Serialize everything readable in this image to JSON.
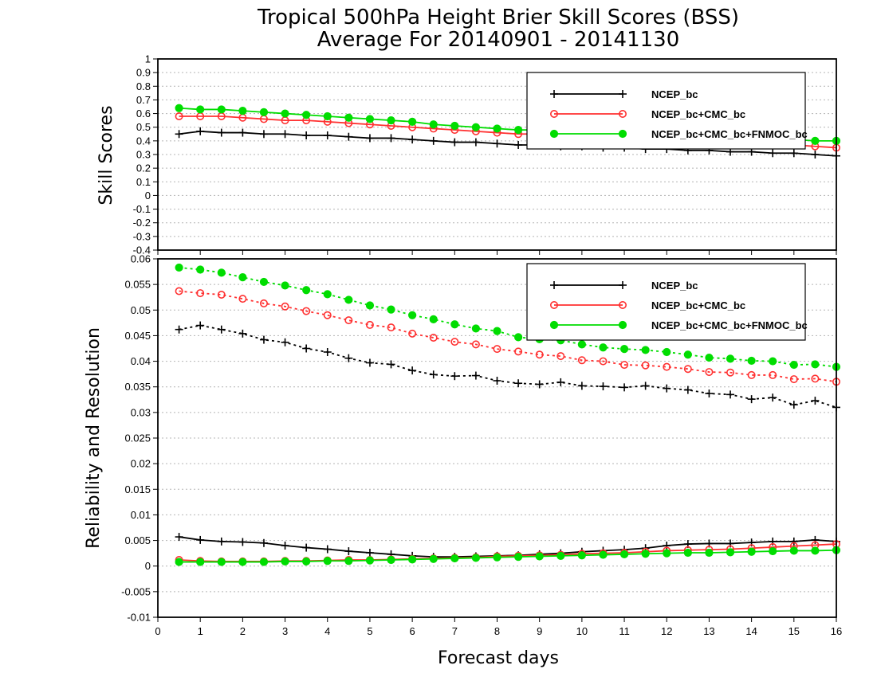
{
  "title_line1": "Tropical 500hPa Height Brier Skill Scores (BSS)",
  "title_line2": "Average For 20140901 - 20141130",
  "xlabel": "Forecast days",
  "chart_data": [
    {
      "type": "line",
      "panel": "top",
      "ylabel": "Skill Scores",
      "xlabel": "Forecast days",
      "xlim": [
        0,
        16
      ],
      "ylim": [
        -0.4,
        1
      ],
      "xticks": [
        "0",
        "1",
        "2",
        "3",
        "4",
        "5",
        "6",
        "7",
        "8",
        "9",
        "10",
        "11",
        "12",
        "13",
        "14",
        "15",
        "16"
      ],
      "yticks": [
        "-0.4",
        "-0.3",
        "-0.2",
        "-0.1",
        "0",
        "0.1",
        "0.2",
        "0.3",
        "0.4",
        "0.5",
        "0.6",
        "0.7",
        "0.8",
        "0.9",
        "1"
      ],
      "grid": true,
      "legend_position": "top-right",
      "x": [
        0.5,
        1,
        1.5,
        2,
        2.5,
        3,
        3.5,
        4,
        4.5,
        5,
        5.5,
        6,
        6.5,
        7,
        7.5,
        8,
        8.5,
        9,
        9.5,
        10,
        10.5,
        11,
        11.5,
        12,
        12.5,
        13,
        13.5,
        14,
        14.5,
        15,
        15.5,
        16
      ],
      "series": [
        {
          "name": "NCEP_bc",
          "color": "#000000",
          "marker": "plus",
          "values": [
            0.45,
            0.47,
            0.46,
            0.46,
            0.45,
            0.45,
            0.44,
            0.44,
            0.43,
            0.42,
            0.42,
            0.41,
            0.4,
            0.39,
            0.39,
            0.38,
            0.37,
            0.37,
            0.36,
            0.36,
            0.35,
            0.35,
            0.34,
            0.34,
            0.33,
            0.33,
            0.32,
            0.32,
            0.31,
            0.31,
            0.3,
            0.29
          ]
        },
        {
          "name": "NCEP_bc+CMC_bc",
          "color": "#ff3030",
          "marker": "open-circle",
          "values": [
            0.58,
            0.58,
            0.58,
            0.57,
            0.56,
            0.55,
            0.55,
            0.54,
            0.53,
            0.52,
            0.51,
            0.5,
            0.49,
            0.48,
            0.47,
            0.46,
            0.45,
            0.45,
            0.44,
            0.43,
            0.42,
            0.42,
            0.41,
            0.4,
            0.4,
            0.39,
            0.38,
            0.38,
            0.37,
            0.37,
            0.36,
            0.35
          ]
        },
        {
          "name": "NCEP_bc+CMC_bc+FNMOC_bc",
          "color": "#00dd00",
          "marker": "filled-circle",
          "values": [
            0.64,
            0.63,
            0.63,
            0.62,
            0.61,
            0.6,
            0.59,
            0.58,
            0.57,
            0.56,
            0.55,
            0.54,
            0.52,
            0.51,
            0.5,
            0.49,
            0.48,
            0.48,
            0.47,
            0.46,
            0.45,
            0.45,
            0.44,
            0.44,
            0.43,
            0.42,
            0.42,
            0.41,
            0.41,
            0.41,
            0.4,
            0.4
          ]
        }
      ]
    },
    {
      "type": "line",
      "panel": "bottom",
      "ylabel": "Reliability and Resolution",
      "xlabel": "Forecast days",
      "xlim": [
        0,
        16
      ],
      "ylim": [
        -0.01,
        0.06
      ],
      "xticks": [
        "0",
        "1",
        "2",
        "3",
        "4",
        "5",
        "6",
        "7",
        "8",
        "9",
        "10",
        "11",
        "12",
        "13",
        "14",
        "15",
        "16"
      ],
      "yticks": [
        "-0.01",
        "-0.005",
        "0",
        "0.005",
        "0.01",
        "0.015",
        "0.02",
        "0.025",
        "0.03",
        "0.035",
        "0.04",
        "0.045",
        "0.05",
        "0.055",
        "0.06"
      ],
      "grid": true,
      "legend_position": "top-right",
      "x": [
        0.5,
        1,
        1.5,
        2,
        2.5,
        3,
        3.5,
        4,
        4.5,
        5,
        5.5,
        6,
        6.5,
        7,
        7.5,
        8,
        8.5,
        9,
        9.5,
        10,
        10.5,
        11,
        11.5,
        12,
        12.5,
        13,
        13.5,
        14,
        14.5,
        15,
        15.5,
        16
      ],
      "series": [
        {
          "name": "NCEP_bc",
          "color": "#000000",
          "marker": "plus",
          "resolution": [
            0.0462,
            0.047,
            0.0462,
            0.0454,
            0.0442,
            0.0437,
            0.0425,
            0.0418,
            0.0406,
            0.0397,
            0.0394,
            0.0382,
            0.0374,
            0.0371,
            0.0372,
            0.0362,
            0.0357,
            0.0355,
            0.0359,
            0.0352,
            0.0351,
            0.0349,
            0.0352,
            0.0347,
            0.0344,
            0.0337,
            0.0335,
            0.0326,
            0.0329,
            0.0315,
            0.0323,
            0.031
          ],
          "reliability": [
            0.0057,
            0.0051,
            0.0048,
            0.0047,
            0.0045,
            0.004,
            0.0036,
            0.0033,
            0.0029,
            0.0026,
            0.0023,
            0.002,
            0.0018,
            0.0018,
            0.0019,
            0.002,
            0.0021,
            0.0023,
            0.0025,
            0.0028,
            0.003,
            0.0032,
            0.0035,
            0.004,
            0.0043,
            0.0044,
            0.0044,
            0.0046,
            0.0048,
            0.0048,
            0.0051,
            0.0048
          ]
        },
        {
          "name": "NCEP_bc+CMC_bc",
          "color": "#ff3030",
          "marker": "open-circle",
          "resolution": [
            0.0537,
            0.0533,
            0.053,
            0.0522,
            0.0513,
            0.0507,
            0.0498,
            0.049,
            0.048,
            0.0471,
            0.0466,
            0.0454,
            0.0446,
            0.0438,
            0.0433,
            0.0424,
            0.0419,
            0.0413,
            0.041,
            0.0402,
            0.04,
            0.0393,
            0.0392,
            0.0389,
            0.0385,
            0.0379,
            0.0378,
            0.0373,
            0.0373,
            0.0365,
            0.0366,
            0.036
          ],
          "reliability": [
            0.0012,
            0.001,
            0.0009,
            0.0009,
            0.0009,
            0.001,
            0.001,
            0.0011,
            0.0012,
            0.0012,
            0.0013,
            0.0014,
            0.0015,
            0.0016,
            0.0017,
            0.0019,
            0.002,
            0.0021,
            0.0022,
            0.0024,
            0.0025,
            0.0026,
            0.0028,
            0.003,
            0.0031,
            0.0032,
            0.0033,
            0.0035,
            0.0037,
            0.0039,
            0.0041,
            0.0043
          ]
        },
        {
          "name": "NCEP_bc+CMC_bc+FNMOC_bc",
          "color": "#00dd00",
          "marker": "filled-circle",
          "resolution": [
            0.0583,
            0.0579,
            0.0573,
            0.0564,
            0.0555,
            0.0548,
            0.0539,
            0.0531,
            0.052,
            0.0509,
            0.0501,
            0.049,
            0.0482,
            0.0472,
            0.0464,
            0.0459,
            0.0447,
            0.0443,
            0.0441,
            0.0433,
            0.0427,
            0.0424,
            0.0422,
            0.0418,
            0.0413,
            0.0407,
            0.0405,
            0.0401,
            0.04,
            0.0393,
            0.0394,
            0.0389
          ],
          "reliability": [
            0.0008,
            0.0008,
            0.0008,
            0.0008,
            0.0008,
            0.0009,
            0.0009,
            0.001,
            0.001,
            0.0011,
            0.0012,
            0.0013,
            0.0014,
            0.0015,
            0.0016,
            0.0017,
            0.0018,
            0.0019,
            0.002,
            0.0021,
            0.0022,
            0.0023,
            0.0024,
            0.0025,
            0.0026,
            0.0026,
            0.0027,
            0.0028,
            0.0029,
            0.003,
            0.003,
            0.0031
          ]
        }
      ]
    }
  ]
}
